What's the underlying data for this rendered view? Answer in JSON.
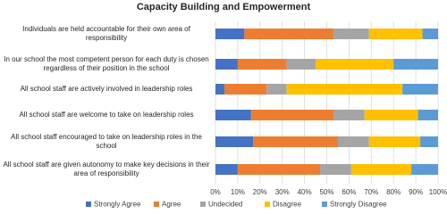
{
  "chart_data": {
    "type": "stacked-barh",
    "title": "Capacity Building and Empowerment",
    "categories": [
      "Individuals are held accountable for their own area of responsibility",
      "In our school the most competent person for each duty is chosen regardless of their position in the school",
      "All school staff are actively involved in leadership roles",
      "All school staff are welcome to take on leadership roles",
      "All school staff encouraged to take on leadership roles in the school",
      "All school staff are given autonomy to make key decisions in their area of responsibility"
    ],
    "series": [
      {
        "name": "Strongly Agree",
        "color": "#4472c4",
        "values": [
          13,
          10,
          4,
          16,
          17,
          10
        ]
      },
      {
        "name": "Agree",
        "color": "#ed7d31",
        "values": [
          40,
          22,
          19,
          37,
          38,
          37
        ]
      },
      {
        "name": "Undecided",
        "color": "#a5a5a5",
        "values": [
          16,
          13,
          9,
          14,
          14,
          14
        ]
      },
      {
        "name": "Disagree",
        "color": "#ffc000",
        "values": [
          24,
          35,
          52,
          24,
          23,
          27
        ]
      },
      {
        "name": "Strongly Disagree",
        "color": "#5b9bd5",
        "values": [
          7,
          20,
          16,
          9,
          8,
          12
        ]
      }
    ],
    "xlim": [
      0,
      100
    ],
    "xticks": [
      {
        "value": 0,
        "label": "0%"
      },
      {
        "value": 10,
        "label": "10%"
      },
      {
        "value": 20,
        "label": "20%"
      },
      {
        "value": 30,
        "label": "30%"
      },
      {
        "value": 40,
        "label": "40%"
      },
      {
        "value": 50,
        "label": "50%"
      },
      {
        "value": 60,
        "label": "60%"
      },
      {
        "value": 70,
        "label": "70%"
      },
      {
        "value": 80,
        "label": "80%"
      },
      {
        "value": 90,
        "label": "90%"
      },
      {
        "value": 100,
        "label": "100%"
      }
    ],
    "grid": true,
    "legend": "bottom"
  }
}
